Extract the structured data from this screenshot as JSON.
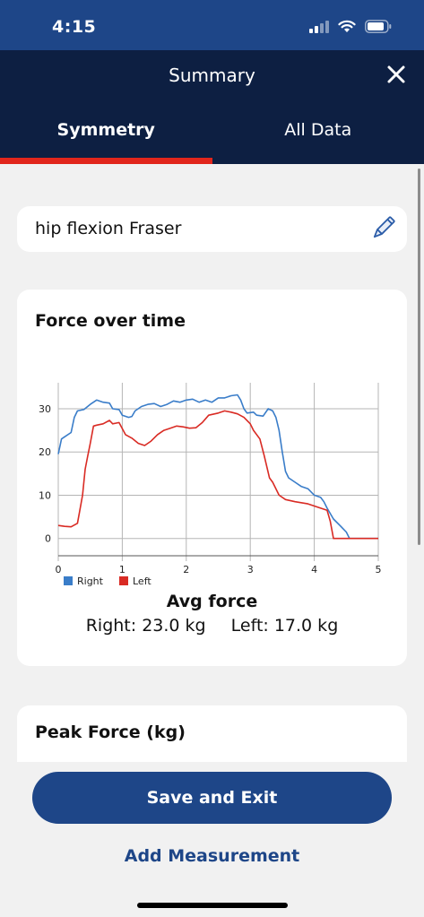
{
  "status_bar": {
    "time": "4:15",
    "icons": [
      "signal-icon",
      "wifi-icon",
      "battery-icon"
    ]
  },
  "header": {
    "title": "Summary",
    "close_icon": "close-icon",
    "tabs": [
      {
        "label": "Symmetry",
        "active": true
      },
      {
        "label": "All Data",
        "active": false
      }
    ]
  },
  "name_card": {
    "value": "hip flexion Fraser",
    "edit_icon": "pencil-icon"
  },
  "chart_card": {
    "title": "Force over time",
    "avg_title": "Avg force",
    "avg_right": "Right: 23.0 kg",
    "avg_left": "Left: 17.0 kg"
  },
  "chart_data": {
    "type": "line",
    "title": "Force over time",
    "xlabel": "",
    "ylabel": "",
    "xlim": [
      0,
      5
    ],
    "ylim": [
      -4,
      36
    ],
    "x_ticks": [
      0,
      1,
      2,
      3,
      4,
      5
    ],
    "y_ticks": [
      0,
      10,
      20,
      30
    ],
    "grid": true,
    "legend_placement": "bottom-left",
    "series": [
      {
        "name": "Right",
        "color": "#3a7dc9",
        "points": [
          [
            0,
            19.5
          ],
          [
            0.05,
            23
          ],
          [
            0.1,
            23.5
          ],
          [
            0.2,
            24.5
          ],
          [
            0.25,
            28
          ],
          [
            0.3,
            29.5
          ],
          [
            0.4,
            29.8
          ],
          [
            0.5,
            31
          ],
          [
            0.6,
            32
          ],
          [
            0.7,
            31.5
          ],
          [
            0.8,
            31.3
          ],
          [
            0.85,
            30
          ],
          [
            0.95,
            29.8
          ],
          [
            1.0,
            28.5
          ],
          [
            1.1,
            28
          ],
          [
            1.15,
            28.2
          ],
          [
            1.2,
            29.5
          ],
          [
            1.3,
            30.5
          ],
          [
            1.4,
            31
          ],
          [
            1.5,
            31.2
          ],
          [
            1.6,
            30.5
          ],
          [
            1.7,
            31
          ],
          [
            1.8,
            31.8
          ],
          [
            1.9,
            31.5
          ],
          [
            2.0,
            32
          ],
          [
            2.1,
            32.2
          ],
          [
            2.2,
            31.5
          ],
          [
            2.3,
            32
          ],
          [
            2.4,
            31.5
          ],
          [
            2.5,
            32.5
          ],
          [
            2.6,
            32.5
          ],
          [
            2.7,
            33
          ],
          [
            2.8,
            33.2
          ],
          [
            2.85,
            32
          ],
          [
            2.9,
            30
          ],
          [
            2.95,
            29
          ],
          [
            3.05,
            29.2
          ],
          [
            3.1,
            28.5
          ],
          [
            3.2,
            28.3
          ],
          [
            3.28,
            30
          ],
          [
            3.35,
            29.5
          ],
          [
            3.4,
            28
          ],
          [
            3.45,
            25
          ],
          [
            3.5,
            20
          ],
          [
            3.55,
            15.5
          ],
          [
            3.6,
            14
          ],
          [
            3.7,
            13
          ],
          [
            3.8,
            12
          ],
          [
            3.9,
            11.5
          ],
          [
            4.0,
            10
          ],
          [
            4.1,
            9.5
          ],
          [
            4.15,
            8.5
          ],
          [
            4.2,
            7
          ],
          [
            4.3,
            4.5
          ],
          [
            4.4,
            3
          ],
          [
            4.5,
            1.5
          ],
          [
            4.55,
            0
          ],
          [
            5.0,
            0
          ]
        ]
      },
      {
        "name": "Left",
        "color": "#d92b24",
        "points": [
          [
            0,
            3
          ],
          [
            0.1,
            2.8
          ],
          [
            0.2,
            2.7
          ],
          [
            0.3,
            3.5
          ],
          [
            0.33,
            6
          ],
          [
            0.38,
            10
          ],
          [
            0.42,
            16
          ],
          [
            0.46,
            19
          ],
          [
            0.5,
            22
          ],
          [
            0.55,
            26
          ],
          [
            0.6,
            26.2
          ],
          [
            0.7,
            26.5
          ],
          [
            0.8,
            27.3
          ],
          [
            0.85,
            26.5
          ],
          [
            0.95,
            26.8
          ],
          [
            1.05,
            24
          ],
          [
            1.15,
            23.2
          ],
          [
            1.25,
            22
          ],
          [
            1.35,
            21.5
          ],
          [
            1.45,
            22.5
          ],
          [
            1.55,
            24
          ],
          [
            1.65,
            25
          ],
          [
            1.75,
            25.5
          ],
          [
            1.85,
            26
          ],
          [
            1.95,
            25.8
          ],
          [
            2.05,
            25.5
          ],
          [
            2.15,
            25.6
          ],
          [
            2.25,
            26.8
          ],
          [
            2.35,
            28.5
          ],
          [
            2.5,
            29
          ],
          [
            2.6,
            29.5
          ],
          [
            2.7,
            29.2
          ],
          [
            2.8,
            28.8
          ],
          [
            2.9,
            28
          ],
          [
            3.0,
            26.5
          ],
          [
            3.05,
            25
          ],
          [
            3.15,
            23
          ],
          [
            3.22,
            19
          ],
          [
            3.3,
            14
          ],
          [
            3.35,
            13
          ],
          [
            3.45,
            10
          ],
          [
            3.55,
            9
          ],
          [
            3.7,
            8.5
          ],
          [
            3.9,
            8
          ],
          [
            4.0,
            7.5
          ],
          [
            4.1,
            7
          ],
          [
            4.2,
            6.5
          ],
          [
            4.25,
            4
          ],
          [
            4.3,
            0
          ],
          [
            5.0,
            0
          ]
        ]
      }
    ]
  },
  "peak_card": {
    "title": "Peak Force (kg)"
  },
  "actions": {
    "save_label": "Save and Exit",
    "add_label": "Add Measurement"
  },
  "colors": {
    "brand_blue": "#1e4688",
    "header_navy": "#0d1f42",
    "tab_indicator": "#e1261c"
  }
}
